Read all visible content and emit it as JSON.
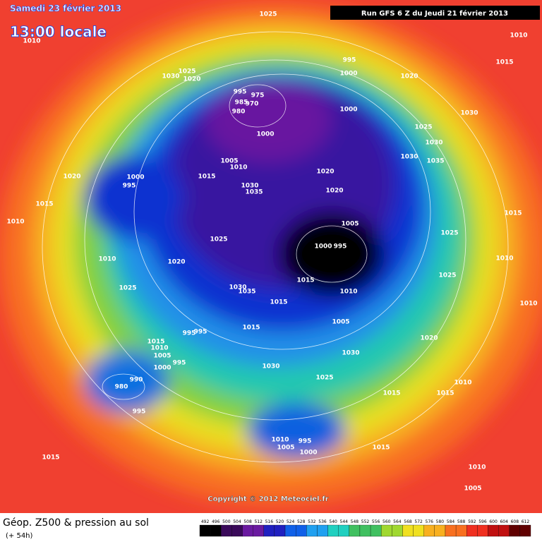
{
  "header": {
    "date": "Samedi 23 février 2013",
    "time": "13:00 locale",
    "run": "Run GFS 6 Z du Jeudi 21 février 2013"
  },
  "isobar_labels": [
    1025,
    1010,
    1010,
    1015,
    995,
    1000,
    1030,
    1025,
    1020,
    1020,
    995,
    975,
    985,
    970,
    980,
    1000,
    1030,
    1000,
    1025,
    1030,
    1005,
    1010,
    1030,
    1035,
    1020,
    1000,
    995,
    1015,
    1020,
    1030,
    1035,
    1020,
    1015,
    1010,
    1015,
    1005,
    1025,
    1025,
    1000,
    995,
    1010,
    1020,
    1010,
    1025,
    1015,
    1030,
    1035,
    1010,
    1025,
    1015,
    1010,
    1005,
    1015,
    995,
    995,
    1020,
    1015,
    1010,
    1030,
    1005,
    995,
    1000,
    1030,
    1025,
    990,
    980,
    1010,
    1015,
    1015,
    995,
    1015,
    1010,
    1005,
    995,
    1000,
    1015,
    1010,
    1005
  ],
  "copyright": "Copyright © 2012 Meteociel.fr",
  "footer": {
    "title": "Géop. Z500 & pression au sol",
    "lead": "(+ 54h)"
  },
  "colorbar": {
    "labels": [
      492,
      496,
      500,
      504,
      508,
      512,
      516,
      520,
      524,
      528,
      532,
      536,
      540,
      544,
      548,
      552,
      556,
      560,
      564,
      568,
      572,
      576,
      580,
      584,
      588,
      592,
      596,
      600,
      604,
      608,
      612
    ]
  }
}
